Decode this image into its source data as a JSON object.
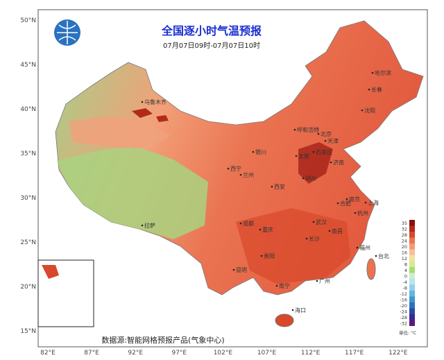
{
  "title": "全国逐小时气温预报",
  "subtitle": "07月07日09时-07月07日10时",
  "source": "数据源:智能网格预报产品(气象中心)",
  "lat_labels": [
    "50°N",
    "45°N",
    "40°N",
    "35°N",
    "30°N",
    "25°N",
    "20°N",
    "15°N"
  ],
  "lon_labels": [
    "82°E",
    "87°E",
    "92°E",
    "97°E",
    "102°E",
    "107°E",
    "112°E",
    "117°E",
    "122°E"
  ],
  "cities": [
    "乌鲁木齐",
    "哈尔滨",
    "长春",
    "沈阳",
    "呼和浩特",
    "北京",
    "天津",
    "石家庄",
    "太原",
    "济南",
    "郑州",
    "银川",
    "西宁",
    "兰州",
    "西安",
    "拉萨",
    "成都",
    "重庆",
    "武汉",
    "合肥",
    "南京",
    "上海",
    "杭州",
    "长沙",
    "南昌",
    "福州",
    "台北",
    "贵阳",
    "昆明",
    "南宁",
    "广州",
    "海口"
  ],
  "legend": {
    "unit": "单位: °C",
    "levels": [
      35,
      32,
      28,
      24,
      20,
      16,
      12,
      8,
      4,
      0,
      -4,
      -8,
      -12,
      -16,
      -20,
      -24,
      -28,
      -32
    ],
    "colors": [
      "#8b0f0f",
      "#b22a1a",
      "#d9482b",
      "#ec7350",
      "#f39a74",
      "#f7bf9b",
      "#f3e1a0",
      "#d4ec8c",
      "#a6dc74",
      "#cdeec9",
      "#b8e4ee",
      "#8fd0ea",
      "#63b6e0",
      "#3f94d1",
      "#2f6fc0",
      "#2a4aa8",
      "#3a2a92",
      "#5a1880"
    ]
  }
}
